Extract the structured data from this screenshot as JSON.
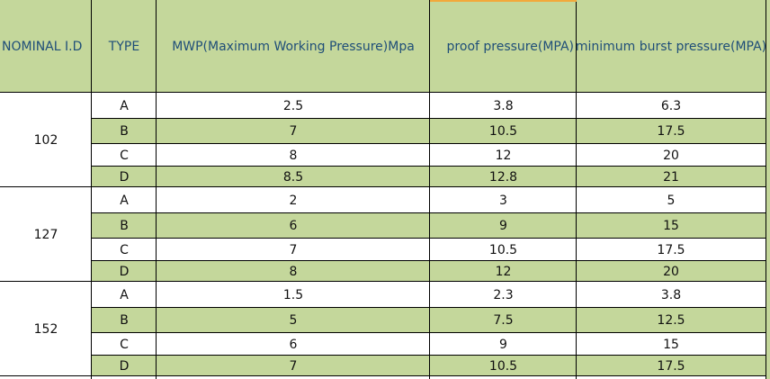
{
  "headers": {
    "nominal_id": "NOMINAL I.D",
    "type": "TYPE",
    "mwp": "MWP(Maximum Working Pressure)Mpa",
    "proof": "proof pressure(MPA)",
    "burst": "minimum burst pressure(MPA)"
  },
  "groups": [
    {
      "nominal": "102",
      "rows": [
        {
          "type": "A",
          "mwp": "2.5",
          "proof": "3.8",
          "burst": "6.3"
        },
        {
          "type": "B",
          "mwp": "7",
          "proof": "10.5",
          "burst": "17.5"
        },
        {
          "type": "C",
          "mwp": "8",
          "proof": "12",
          "burst": "20"
        },
        {
          "type": "D",
          "mwp": "8.5",
          "proof": "12.8",
          "burst": "21"
        }
      ]
    },
    {
      "nominal": "127",
      "rows": [
        {
          "type": "A",
          "mwp": "2",
          "proof": "3",
          "burst": "5"
        },
        {
          "type": "B",
          "mwp": "6",
          "proof": "9",
          "burst": "15"
        },
        {
          "type": "C",
          "mwp": "7",
          "proof": "10.5",
          "burst": "17.5"
        },
        {
          "type": "D",
          "mwp": "8",
          "proof": "12",
          "burst": "20"
        }
      ]
    },
    {
      "nominal": "152",
      "rows": [
        {
          "type": "A",
          "mwp": "1.5",
          "proof": "2.3",
          "burst": "3.8"
        },
        {
          "type": "B",
          "mwp": "5",
          "proof": "7.5",
          "burst": "12.5"
        },
        {
          "type": "C",
          "mwp": "6",
          "proof": "9",
          "burst": "15"
        },
        {
          "type": "D",
          "mwp": "7",
          "proof": "10.5",
          "burst": "17.5"
        }
      ]
    }
  ],
  "colors": {
    "header_fill": "#c4d79b",
    "header_text": "#1f4e78",
    "band_fill": "#c4d79b",
    "selection_accent": "#f2a93b"
  }
}
